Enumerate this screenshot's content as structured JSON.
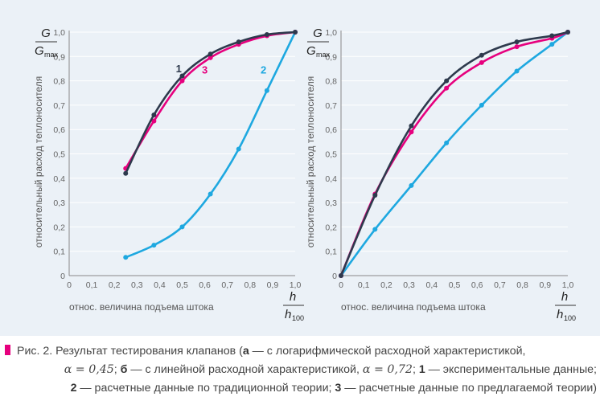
{
  "chart_data": [
    {
      "type": "line",
      "panel": "a",
      "ylabel": "относительный расход теплоносителя",
      "xlabel": "относ. величина подъема штока",
      "y_fraction": {
        "num": "G",
        "den": "G",
        "den_sub": "max"
      },
      "x_fraction": {
        "num": "h",
        "den": "h",
        "den_sub": "100"
      },
      "xlim": [
        0,
        1.0
      ],
      "ylim": [
        0,
        1.0
      ],
      "x_ticks": [
        "0",
        "0,1",
        "0,2",
        "0,3",
        "0,4",
        "0,5",
        "0,6",
        "0,7",
        "0,8",
        "0,9",
        "1,0"
      ],
      "y_ticks": [
        "0",
        "0,1",
        "0,2",
        "0,3",
        "0,4",
        "0,5",
        "0,6",
        "0,7",
        "0,8",
        "0,9",
        "1,0"
      ],
      "grid": true,
      "series": [
        {
          "name": "1",
          "color": "#2e3a4d",
          "x": [
            0.25,
            0.375,
            0.5,
            0.625,
            0.75,
            0.875,
            1.0
          ],
          "y": [
            0.42,
            0.66,
            0.82,
            0.91,
            0.96,
            0.99,
            1.0
          ],
          "label_x": 0.485,
          "label_y": 0.835
        },
        {
          "name": "3",
          "color": "#e6007e",
          "x": [
            0.25,
            0.375,
            0.5,
            0.625,
            0.75,
            0.875,
            1.0
          ],
          "y": [
            0.44,
            0.635,
            0.8,
            0.895,
            0.95,
            0.985,
            1.0
          ],
          "label_x": 0.6,
          "label_y": 0.83
        },
        {
          "name": "2",
          "color": "#1ea8e0",
          "x": [
            0.25,
            0.375,
            0.5,
            0.625,
            0.75,
            0.875,
            1.0
          ],
          "y": [
            0.075,
            0.125,
            0.2,
            0.335,
            0.52,
            0.76,
            1.0
          ],
          "label_x": 0.86,
          "label_y": 0.83
        }
      ]
    },
    {
      "type": "line",
      "panel": "b",
      "ylabel": "относительный расход теплоносителя",
      "xlabel": "относ. величина подъема штока",
      "y_fraction": {
        "num": "G",
        "den": "G",
        "den_sub": "max"
      },
      "x_fraction": {
        "num": "h",
        "den": "h",
        "den_sub": "100"
      },
      "xlim": [
        0,
        1.0
      ],
      "ylim": [
        0,
        1.0
      ],
      "x_ticks": [
        "0",
        "0,1",
        "0,2",
        "0,3",
        "0,4",
        "0,5",
        "0,6",
        "0,7",
        "0,8",
        "0,9",
        "1,0"
      ],
      "y_ticks": [
        "0",
        "0,1",
        "0,2",
        "0,3",
        "0,4",
        "0,5",
        "0,6",
        "0,7",
        "0,8",
        "0,9",
        "1,0"
      ],
      "grid": true,
      "series": [
        {
          "name": "1",
          "color": "#2e3a4d",
          "x": [
            0,
            0.15,
            0.31,
            0.465,
            0.62,
            0.775,
            0.93,
            1.0
          ],
          "y": [
            0,
            0.33,
            0.615,
            0.8,
            0.905,
            0.96,
            0.985,
            1.0
          ]
        },
        {
          "name": "3",
          "color": "#e6007e",
          "x": [
            0,
            0.15,
            0.31,
            0.465,
            0.62,
            0.775,
            0.93,
            1.0
          ],
          "y": [
            0,
            0.335,
            0.59,
            0.77,
            0.875,
            0.94,
            0.975,
            1.0
          ]
        },
        {
          "name": "2",
          "color": "#1ea8e0",
          "x": [
            0,
            0.15,
            0.31,
            0.465,
            0.62,
            0.775,
            0.93,
            1.0
          ],
          "y": [
            0,
            0.19,
            0.37,
            0.545,
            0.7,
            0.84,
            0.95,
            1.0
          ]
        }
      ]
    }
  ],
  "caption": {
    "prefix": "Рис. 2. Результат тестирования клапанов (",
    "a_label": "а",
    "a_text": " — с логарифмической расходной характеристикой,",
    "alpha1": "α = 0,45",
    "sep1": "; ",
    "b_label": "б",
    "b_text": " — с линейной расходной характеристикой, ",
    "alpha2": "α = 0,72",
    "sep2": "; ",
    "n1": "1",
    "n1_text": " — экспериментальные данные;",
    "n2": "2",
    "n2_text": " — расчетные данные по традиционной теории; ",
    "n3": "3",
    "n3_text": " — расчетные данные по предлагаемой теории)"
  }
}
